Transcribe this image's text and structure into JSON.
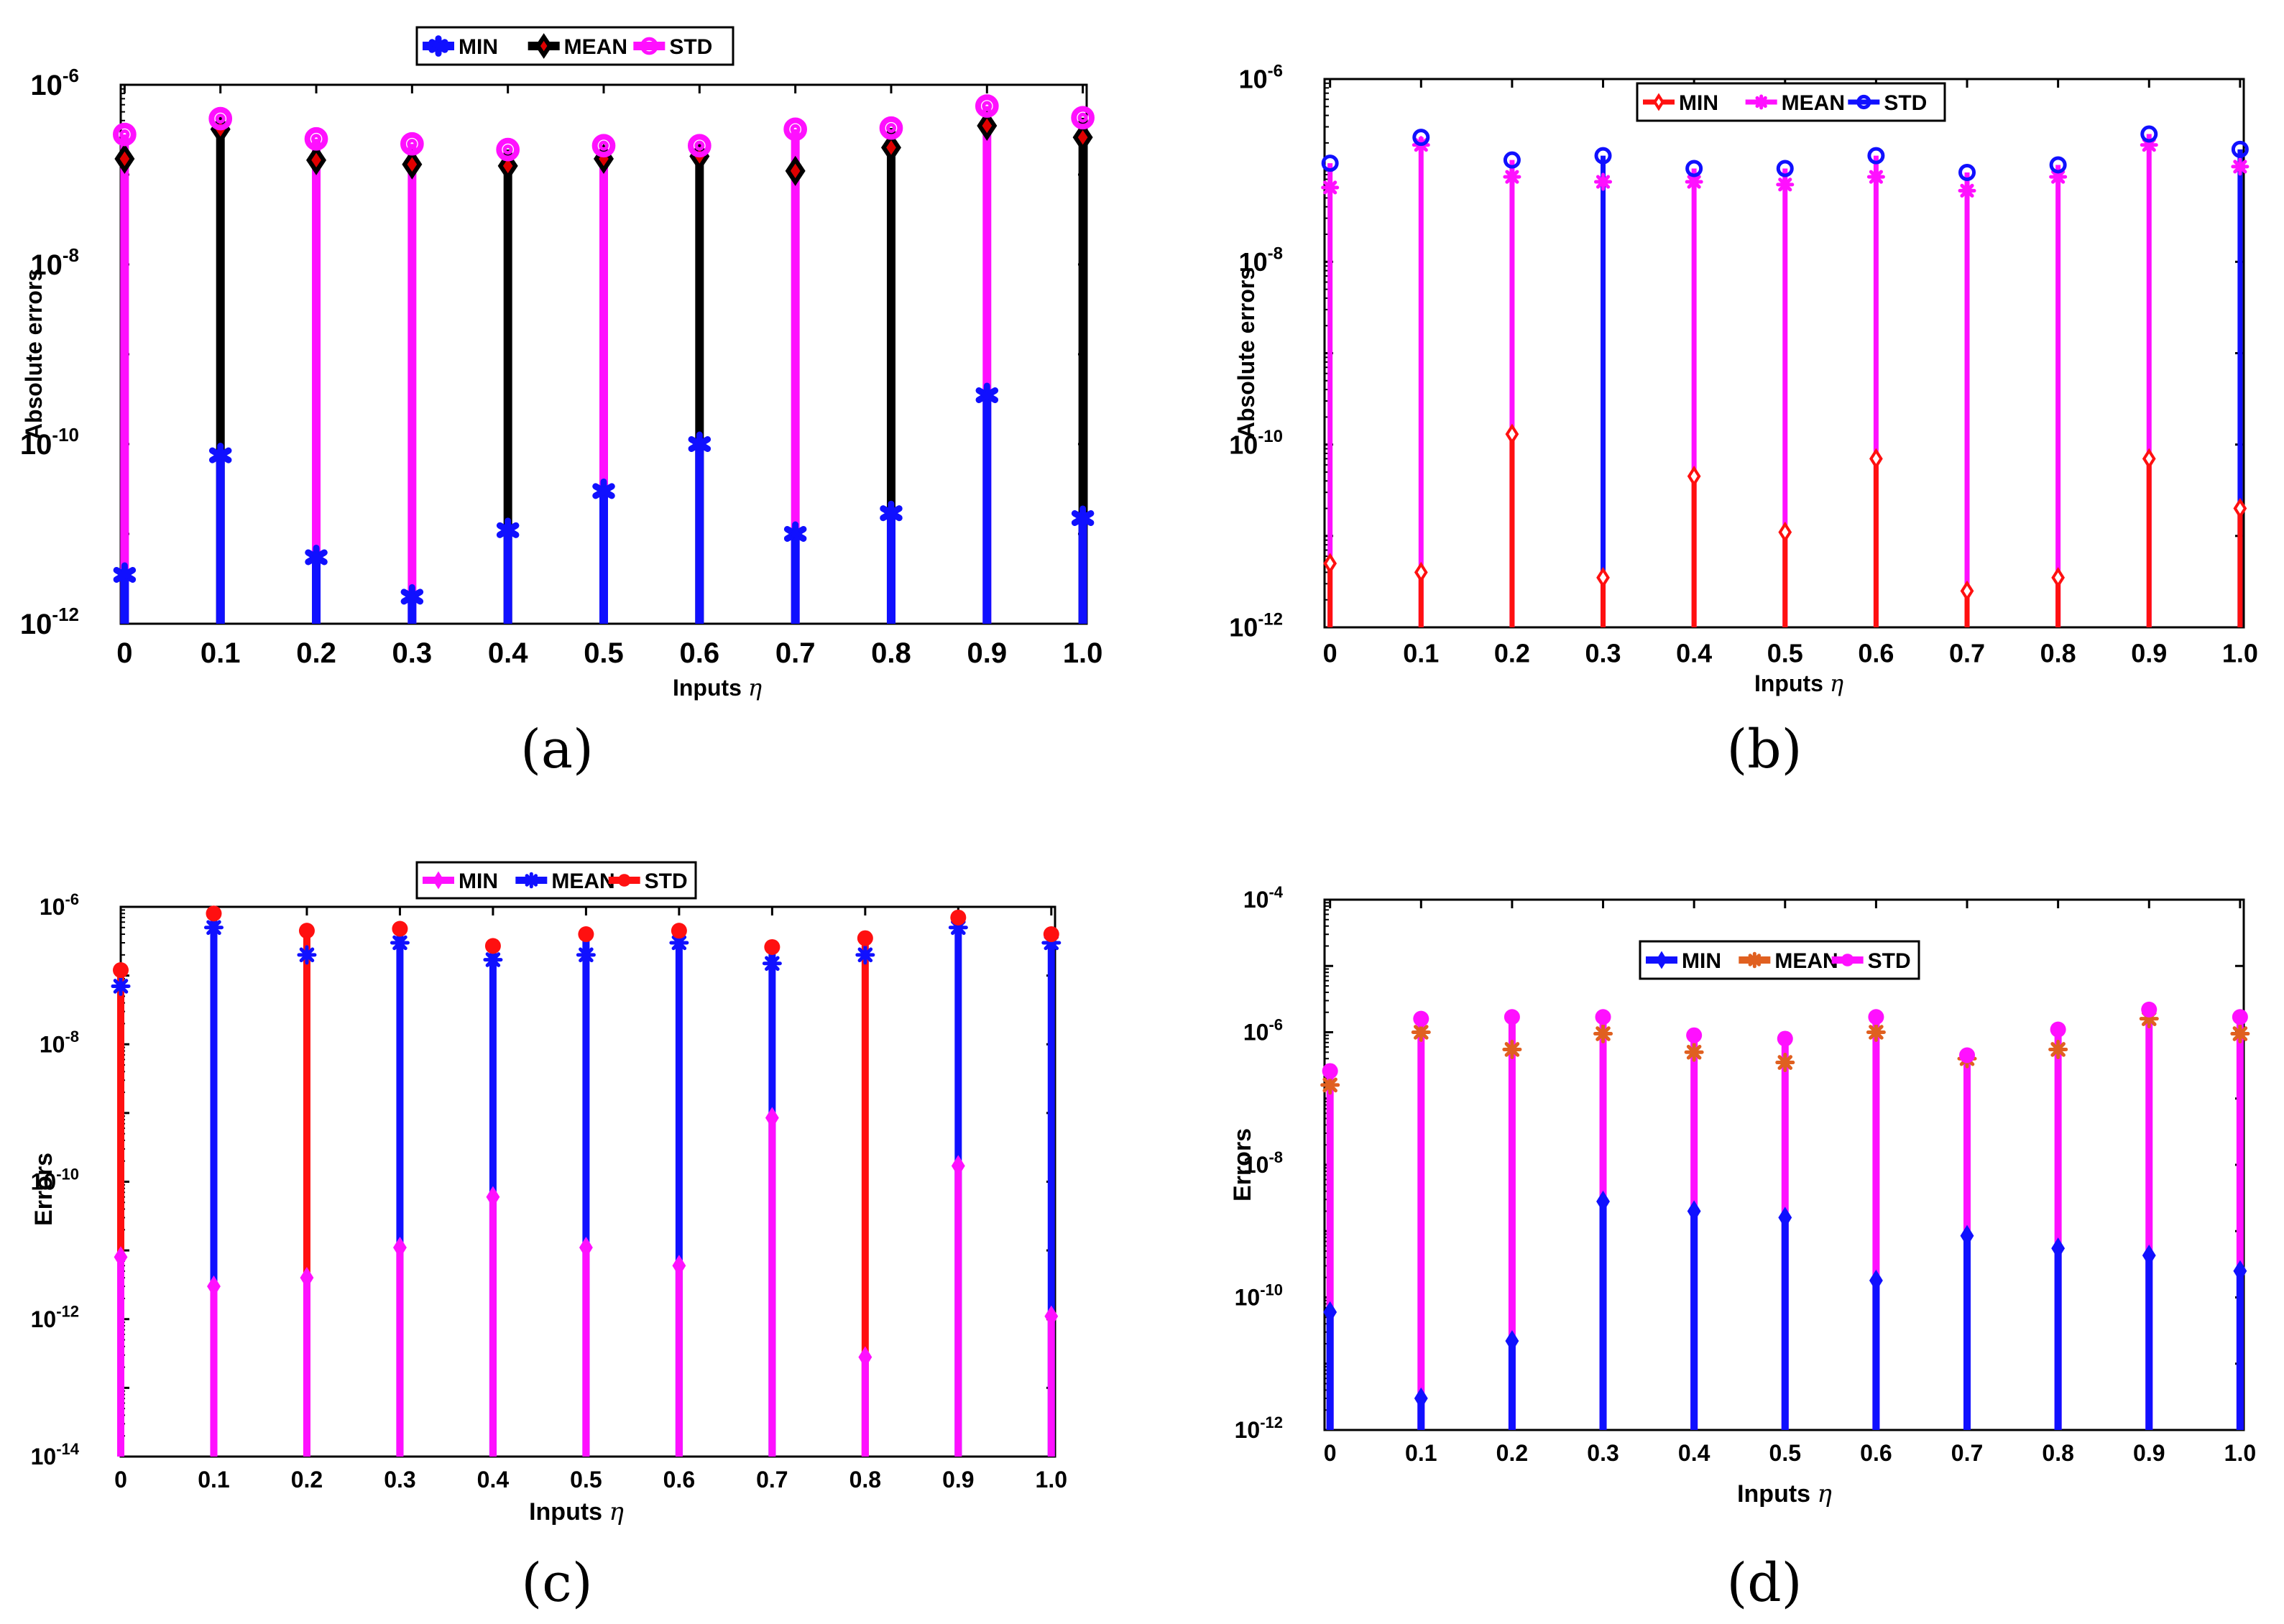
{
  "chart_data": [
    {
      "panel": "(a)",
      "type": "stem",
      "yscale": "log",
      "ylim_exp": [
        -12,
        -6
      ],
      "yticks_exp": [
        -12,
        -10,
        -8,
        -6
      ],
      "ylabel": "Absolute errors",
      "xlabel": "Inputs η",
      "categories": [
        "0",
        "0.1",
        "0.2",
        "0.3",
        "0.4",
        "0.5",
        "0.6",
        "0.7",
        "0.8",
        "0.9",
        "1.0"
      ],
      "legend": [
        "MIN",
        "MEAN",
        "STD"
      ],
      "series": [
        {
          "name": "MIN",
          "color": "#1010ff",
          "marker": "star",
          "values": [
            3.5e-12,
            7.5e-11,
            5.5e-12,
            2e-12,
            1.1e-11,
            3e-11,
            1e-10,
            1e-11,
            1.7e-11,
            3.5e-10,
            1.5e-11
          ]
        },
        {
          "name": "MEAN",
          "color": "#000000",
          "marker": "diamond-red",
          "values": [
            1.5e-07,
            3.2e-07,
            1.45e-07,
            1.3e-07,
            1.25e-07,
            1.5e-07,
            1.6e-07,
            1.1e-07,
            2e-07,
            3.5e-07,
            2.6e-07
          ]
        },
        {
          "name": "STD",
          "color": "#ff10ff",
          "marker": "ring",
          "values": [
            2.8e-07,
            4.2e-07,
            2.5e-07,
            2.2e-07,
            1.9e-07,
            2.1e-07,
            2.1e-07,
            3.2e-07,
            3.3e-07,
            5.8e-07,
            4.3e-07
          ]
        }
      ],
      "stem_color_by_index": [
        "#ff10ff",
        "#000000",
        "#ff10ff",
        "#ff10ff",
        "#000000",
        "#ff10ff",
        "#000000",
        "#ff10ff",
        "#000000",
        "#ff10ff",
        "#000000"
      ]
    },
    {
      "panel": "(b)",
      "type": "stem",
      "yscale": "log",
      "ylim_exp": [
        -12,
        -6
      ],
      "yticks_exp": [
        -12,
        -10,
        -8,
        -6
      ],
      "ylabel": "Absolute errors",
      "xlabel": "Inputs η",
      "categories": [
        "0",
        "0.1",
        "0.2",
        "0.3",
        "0.4",
        "0.5",
        "0.6",
        "0.7",
        "0.8",
        "0.9",
        "1.0"
      ],
      "legend": [
        "MIN",
        "MEAN",
        "STD"
      ],
      "series": [
        {
          "name": "MIN",
          "color": "#ff1010",
          "marker": "diamond-open",
          "values": [
            5e-12,
            4e-12,
            1.3e-10,
            3.5e-12,
            4.5e-11,
            1.1e-11,
            7e-11,
            2.5e-12,
            3.5e-12,
            7e-11,
            2e-11
          ]
        },
        {
          "name": "MEAN",
          "color": "#ff10ff",
          "marker": "asterisk",
          "values": [
            6.5e-08,
            1.9e-07,
            8.5e-08,
            7.5e-08,
            7.5e-08,
            7e-08,
            8.5e-08,
            6e-08,
            8.5e-08,
            1.9e-07,
            1.1e-07
          ]
        },
        {
          "name": "STD",
          "color": "#1010ff",
          "marker": "ring",
          "values": [
            1.2e-07,
            2.3e-07,
            1.3e-07,
            1.45e-07,
            1.05e-07,
            1.05e-07,
            1.45e-07,
            9.5e-08,
            1.15e-07,
            2.5e-07,
            1.7e-07
          ]
        }
      ],
      "stem_color_by_index": [
        "#ff10ff",
        "#ff10ff",
        "#ff10ff",
        "#1010ff",
        "#ff10ff",
        "#ff10ff",
        "#ff10ff",
        "#ff10ff",
        "#ff10ff",
        "#ff10ff",
        "#1010ff"
      ]
    },
    {
      "panel": "(c)",
      "type": "stem",
      "yscale": "log",
      "ylim_exp": [
        -14,
        -6
      ],
      "yticks_exp": [
        -14,
        -12,
        -10,
        -8,
        -6
      ],
      "ylabel": "Errors",
      "xlabel": "Inputs η",
      "categories": [
        "0",
        "0.1",
        "0.2",
        "0.3",
        "0.4",
        "0.5",
        "0.6",
        "0.7",
        "0.8",
        "0.9",
        "1.0"
      ],
      "legend": [
        "MIN",
        "MEAN",
        "STD"
      ],
      "series": [
        {
          "name": "MIN",
          "color": "#ff10ff",
          "marker": "diamond-filled",
          "values": [
            8e-12,
            3e-12,
            4e-12,
            1.1e-11,
            6e-11,
            1.1e-11,
            6e-12,
            8.5e-10,
            2.8e-13,
            1.7e-10,
            1.1e-12
          ]
        },
        {
          "name": "MEAN",
          "color": "#1010ff",
          "marker": "asterisk",
          "values": [
            7e-08,
            5e-07,
            2e-07,
            3e-07,
            1.7e-07,
            2e-07,
            3e-07,
            1.5e-07,
            2e-07,
            5e-07,
            3e-07
          ]
        },
        {
          "name": "STD",
          "color": "#ff1010",
          "marker": "dot",
          "values": [
            1.2e-07,
            8e-07,
            4.5e-07,
            4.8e-07,
            2.7e-07,
            4e-07,
            4.5e-07,
            2.6e-07,
            3.5e-07,
            7e-07,
            4e-07
          ]
        }
      ],
      "stem_color_by_index": [
        "#ff1010",
        "#1010ff",
        "#ff1010",
        "#1010ff",
        "#1010ff",
        "#1010ff",
        "#1010ff",
        "#1010ff",
        "#ff1010",
        "#1010ff",
        "#1010ff"
      ]
    },
    {
      "panel": "(d)",
      "type": "stem",
      "yscale": "log",
      "ylim_exp": [
        -12,
        -4
      ],
      "yticks_exp": [
        -12,
        -10,
        -8,
        -6,
        -4
      ],
      "ylabel": "Errors",
      "xlabel": "Inputs η",
      "categories": [
        "0",
        "0.1",
        "0.2",
        "0.3",
        "0.4",
        "0.5",
        "0.6",
        "0.7",
        "0.8",
        "0.9",
        "1.0"
      ],
      "legend": [
        "MIN",
        "MEAN",
        "STD"
      ],
      "series": [
        {
          "name": "MIN",
          "color": "#1010ff",
          "marker": "diamond-filled",
          "values": [
            6e-11,
            3e-12,
            2.2e-11,
            2.8e-09,
            2e-09,
            1.6e-09,
            1.8e-10,
            8.5e-10,
            5.5e-10,
            4.3e-10,
            2.5e-10
          ]
        },
        {
          "name": "MEAN",
          "color": "#e06020",
          "marker": "asterisk",
          "values": [
            1.6e-07,
            1e-06,
            5.5e-07,
            9.5e-07,
            5e-07,
            3.5e-07,
            1e-06,
            4e-07,
            5.5e-07,
            1.6e-06,
            9.5e-07
          ]
        },
        {
          "name": "STD",
          "color": "#ff10ff",
          "marker": "dot",
          "values": [
            2.6e-07,
            1.6e-06,
            1.7e-06,
            1.7e-06,
            9e-07,
            8e-07,
            1.7e-06,
            4.5e-07,
            1.1e-06,
            2.2e-06,
            1.7e-06
          ]
        }
      ],
      "stem_color_by_index": [
        "#ff10ff",
        "#ff10ff",
        "#ff10ff",
        "#ff10ff",
        "#ff10ff",
        "#ff10ff",
        "#ff10ff",
        "#ff10ff",
        "#ff10ff",
        "#ff10ff",
        "#ff10ff"
      ]
    }
  ],
  "labels": {
    "base": "10",
    "xlabel_word": "Inputs",
    "xlabel_symbol": "η"
  }
}
